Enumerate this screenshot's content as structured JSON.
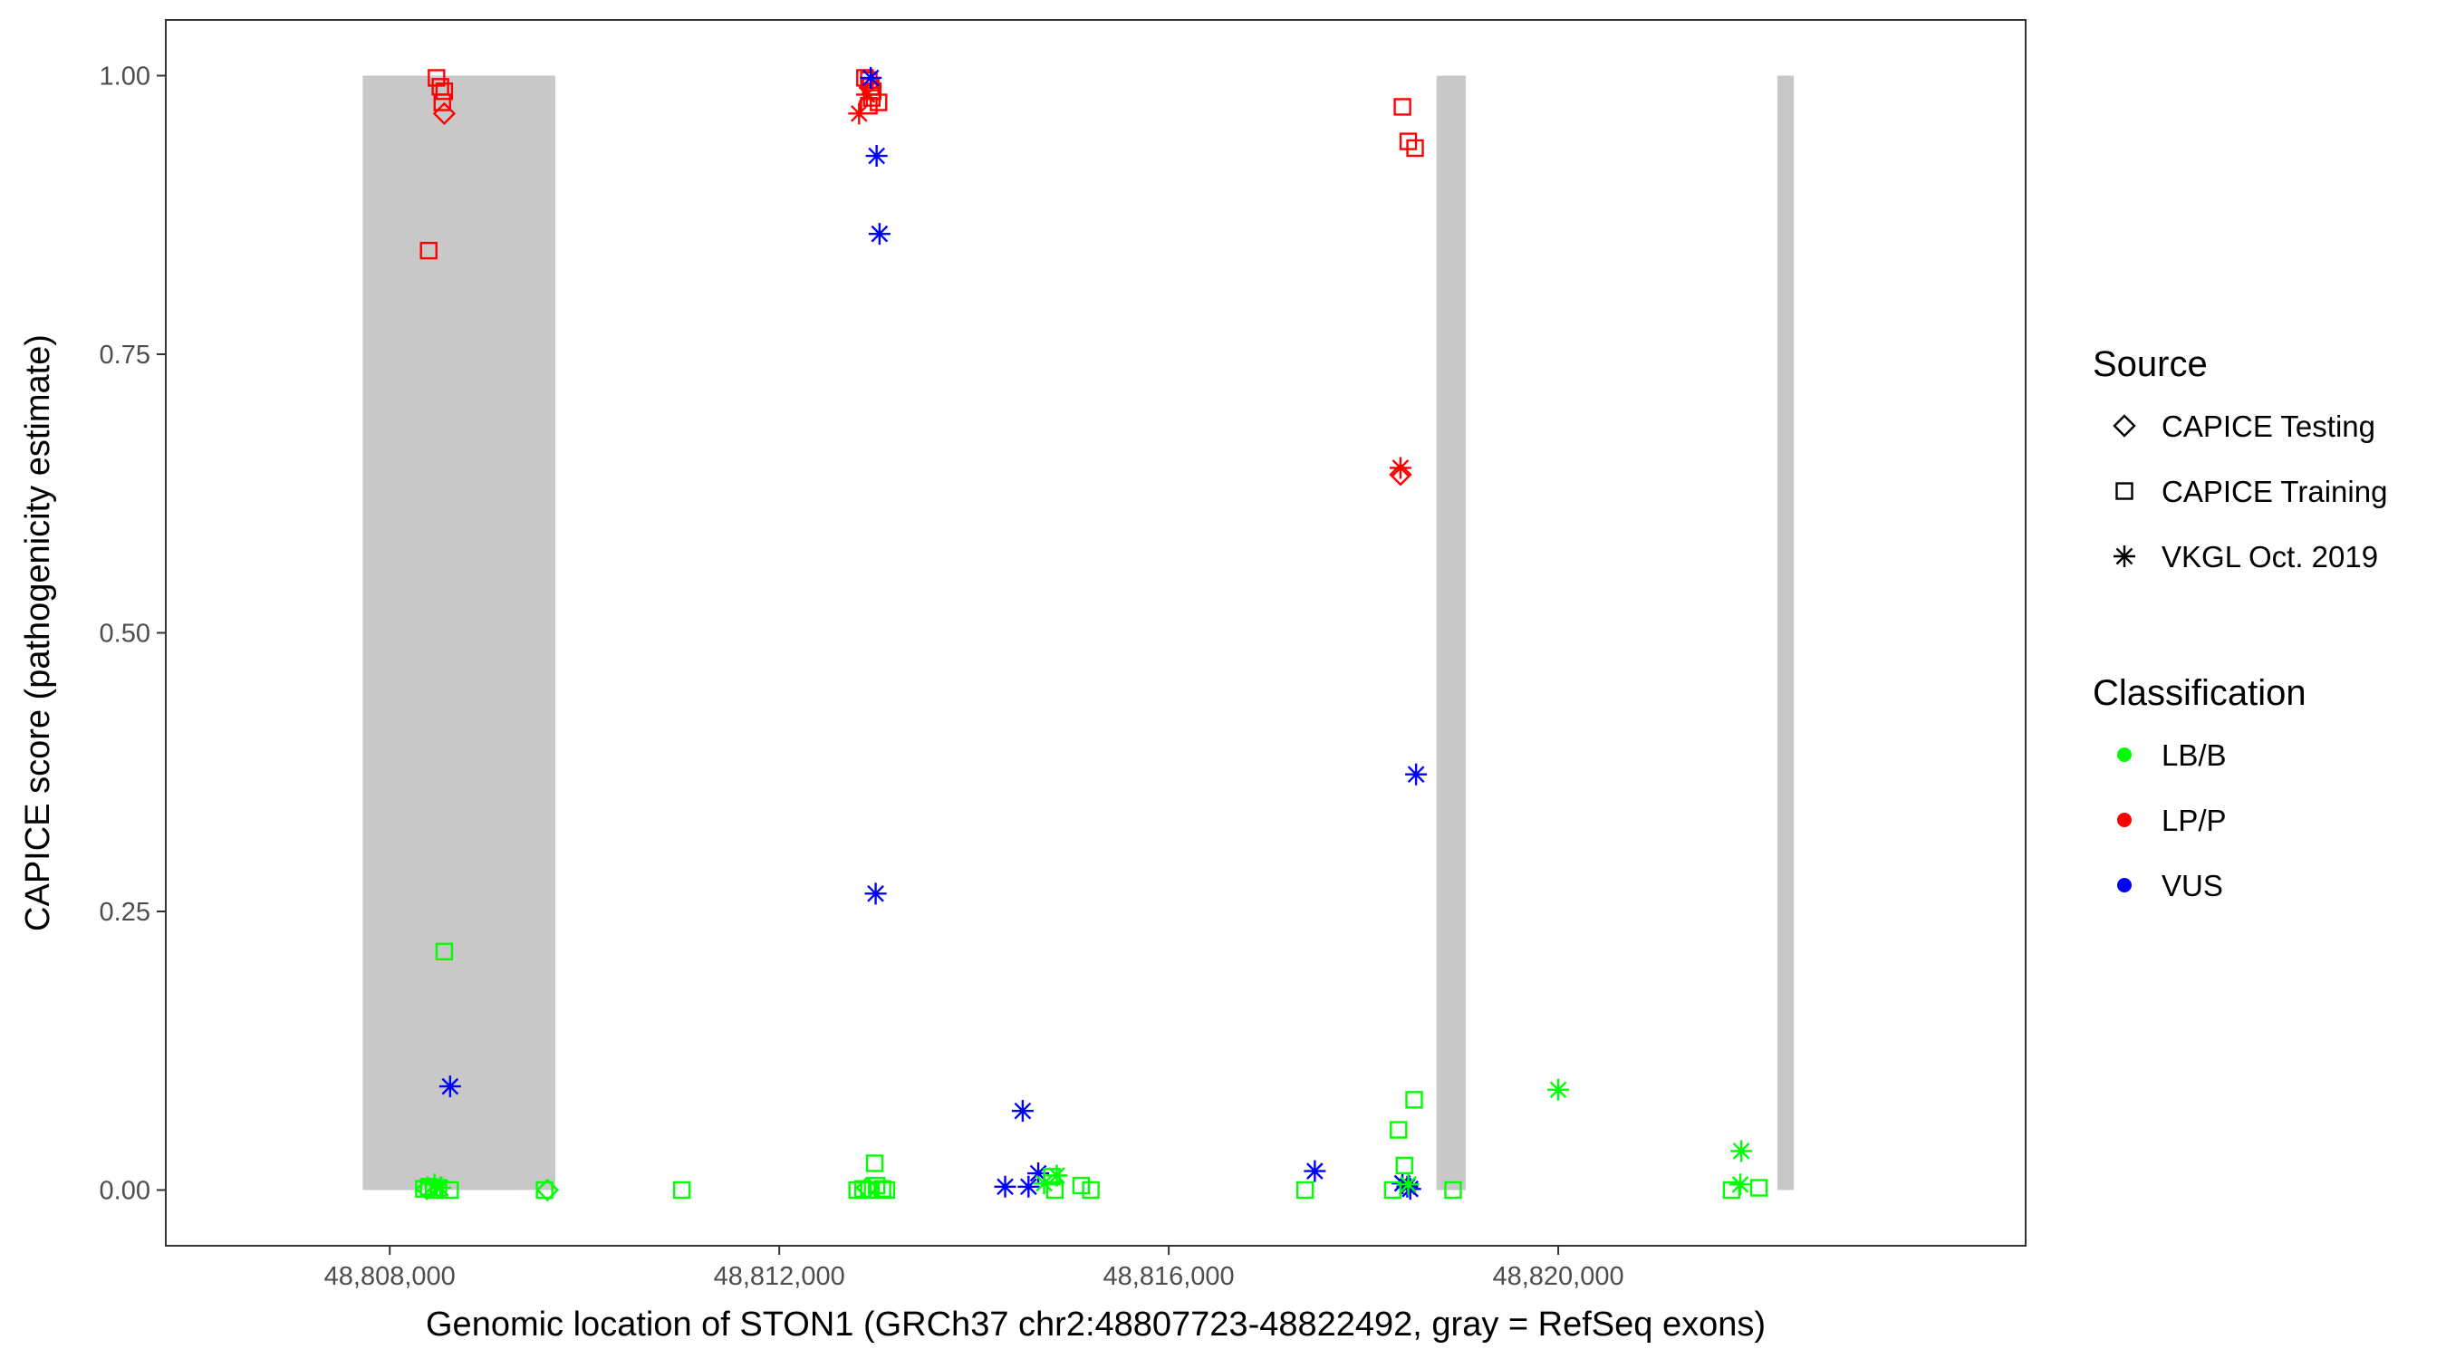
{
  "chart_data": {
    "type": "scatter",
    "title": "",
    "xlabel": "Genomic location of STON1 (GRCh37 chr2:48807723-48822492, gray = RefSeq exons)",
    "ylabel": "CAPICE score (pathogenicity estimate)",
    "xlim": [
      48805700,
      48824800
    ],
    "ylim": [
      -0.05,
      1.05
    ],
    "x_ticks": [
      48808000,
      48812000,
      48816000,
      48820000
    ],
    "x_tick_labels": [
      "48,808,000",
      "48,812,000",
      "48,816,000",
      "48,820,000"
    ],
    "y_ticks": [
      0,
      0.25,
      0.5,
      0.75,
      1
    ],
    "y_tick_labels": [
      "0.00",
      "0.25",
      "0.50",
      "0.75",
      "1.00"
    ],
    "grid": false,
    "exons": [
      {
        "start": 48807723,
        "end": 48809700
      },
      {
        "start": 48818750,
        "end": 48819050
      },
      {
        "start": 48822250,
        "end": 48822420
      }
    ],
    "exon_color": "#c8c8c8",
    "legend_placement": "right",
    "legend": {
      "source_title": "Source",
      "source_items": [
        {
          "label": "CAPICE Testing",
          "shape": "diamond"
        },
        {
          "label": "CAPICE Training",
          "shape": "square"
        },
        {
          "label": "VKGL Oct. 2019",
          "shape": "asterisk"
        }
      ],
      "class_title": "Classification",
      "class_items": [
        {
          "label": "LB/B",
          "color": "#00ff00"
        },
        {
          "label": "LP/P",
          "color": "#ff0000"
        },
        {
          "label": "VUS",
          "color": "#0000ff"
        }
      ]
    },
    "series": [
      {
        "name": "LP/P",
        "color": "#ff0000",
        "points": [
          {
            "x": 48808480,
            "y": 0.998,
            "shape": "square"
          },
          {
            "x": 48808520,
            "y": 0.99,
            "shape": "square"
          },
          {
            "x": 48808560,
            "y": 0.986,
            "shape": "square"
          },
          {
            "x": 48808540,
            "y": 0.976,
            "shape": "square"
          },
          {
            "x": 48808560,
            "y": 0.966,
            "shape": "diamond"
          },
          {
            "x": 48808400,
            "y": 0.843,
            "shape": "square"
          },
          {
            "x": 48812880,
            "y": 0.998,
            "shape": "square"
          },
          {
            "x": 48812920,
            "y": 0.996,
            "shape": "square"
          },
          {
            "x": 48812940,
            "y": 0.99,
            "shape": "square"
          },
          {
            "x": 48812960,
            "y": 0.986,
            "shape": "square"
          },
          {
            "x": 48812950,
            "y": 0.98,
            "shape": "square"
          },
          {
            "x": 48813020,
            "y": 0.976,
            "shape": "square"
          },
          {
            "x": 48812920,
            "y": 0.973,
            "shape": "square"
          },
          {
            "x": 48812820,
            "y": 0.966,
            "shape": "asterisk"
          },
          {
            "x": 48812900,
            "y": 0.983,
            "shape": "asterisk"
          },
          {
            "x": 48818400,
            "y": 0.972,
            "shape": "square"
          },
          {
            "x": 48818460,
            "y": 0.941,
            "shape": "square"
          },
          {
            "x": 48818530,
            "y": 0.935,
            "shape": "square"
          },
          {
            "x": 48818380,
            "y": 0.648,
            "shape": "asterisk"
          },
          {
            "x": 48818380,
            "y": 0.642,
            "shape": "diamond"
          }
        ]
      },
      {
        "name": "VUS",
        "color": "#0000ff",
        "points": [
          {
            "x": 48812940,
            "y": 0.998,
            "shape": "asterisk"
          },
          {
            "x": 48813000,
            "y": 0.928,
            "shape": "asterisk"
          },
          {
            "x": 48813030,
            "y": 0.858,
            "shape": "asterisk"
          },
          {
            "x": 48812990,
            "y": 0.266,
            "shape": "asterisk"
          },
          {
            "x": 48808620,
            "y": 0.093,
            "shape": "asterisk"
          },
          {
            "x": 48814320,
            "y": 0.003,
            "shape": "asterisk"
          },
          {
            "x": 48814500,
            "y": 0.071,
            "shape": "asterisk"
          },
          {
            "x": 48814560,
            "y": 0.003,
            "shape": "asterisk"
          },
          {
            "x": 48814660,
            "y": 0.015,
            "shape": "asterisk"
          },
          {
            "x": 48817500,
            "y": 0.017,
            "shape": "asterisk"
          },
          {
            "x": 48818540,
            "y": 0.373,
            "shape": "asterisk"
          },
          {
            "x": 48818400,
            "y": 0.006,
            "shape": "asterisk"
          },
          {
            "x": 48818450,
            "y": 0.003,
            "shape": "asterisk"
          },
          {
            "x": 48818480,
            "y": 0.001,
            "shape": "asterisk"
          }
        ]
      },
      {
        "name": "LB/B",
        "color": "#00ff00",
        "points": [
          {
            "x": 48808560,
            "y": 0.214,
            "shape": "square"
          },
          {
            "x": 48808350,
            "y": 0.001,
            "shape": "square"
          },
          {
            "x": 48808400,
            "y": 0.003,
            "shape": "square"
          },
          {
            "x": 48808450,
            "y": 0.0,
            "shape": "square"
          },
          {
            "x": 48808500,
            "y": 0.002,
            "shape": "square"
          },
          {
            "x": 48808620,
            "y": 0.0,
            "shape": "square"
          },
          {
            "x": 48808460,
            "y": 0.005,
            "shape": "asterisk"
          },
          {
            "x": 48808520,
            "y": 0.002,
            "shape": "asterisk"
          },
          {
            "x": 48808380,
            "y": 0.001,
            "shape": "diamond"
          },
          {
            "x": 48809590,
            "y": 0.0,
            "shape": "square"
          },
          {
            "x": 48809620,
            "y": 0.0,
            "shape": "diamond"
          },
          {
            "x": 48811000,
            "y": 0.0,
            "shape": "square"
          },
          {
            "x": 48812800,
            "y": 0.0,
            "shape": "square"
          },
          {
            "x": 48812860,
            "y": 0.001,
            "shape": "square"
          },
          {
            "x": 48812920,
            "y": 0.0,
            "shape": "square"
          },
          {
            "x": 48812980,
            "y": 0.024,
            "shape": "square"
          },
          {
            "x": 48813000,
            "y": 0.004,
            "shape": "square"
          },
          {
            "x": 48813060,
            "y": 0.001,
            "shape": "square"
          },
          {
            "x": 48813100,
            "y": 0.0,
            "shape": "square"
          },
          {
            "x": 48812900,
            "y": 0.002,
            "shape": "diamond"
          },
          {
            "x": 48814720,
            "y": 0.006,
            "shape": "asterisk"
          },
          {
            "x": 48814850,
            "y": 0.013,
            "shape": "asterisk"
          },
          {
            "x": 48814800,
            "y": 0.012,
            "shape": "square"
          },
          {
            "x": 48814830,
            "y": 0.0,
            "shape": "square"
          },
          {
            "x": 48815100,
            "y": 0.004,
            "shape": "square"
          },
          {
            "x": 48815200,
            "y": 0.0,
            "shape": "square"
          },
          {
            "x": 48817400,
            "y": 0.0,
            "shape": "square"
          },
          {
            "x": 48818300,
            "y": 0.0,
            "shape": "square"
          },
          {
            "x": 48818360,
            "y": 0.054,
            "shape": "square"
          },
          {
            "x": 48818420,
            "y": 0.022,
            "shape": "square"
          },
          {
            "x": 48818520,
            "y": 0.081,
            "shape": "square"
          },
          {
            "x": 48818460,
            "y": 0.005,
            "shape": "asterisk"
          },
          {
            "x": 48818920,
            "y": 0.0,
            "shape": "square"
          },
          {
            "x": 48820000,
            "y": 0.09,
            "shape": "asterisk"
          },
          {
            "x": 48821780,
            "y": 0.0,
            "shape": "square"
          },
          {
            "x": 48821870,
            "y": 0.005,
            "shape": "asterisk"
          },
          {
            "x": 48821880,
            "y": 0.035,
            "shape": "asterisk"
          },
          {
            "x": 48822060,
            "y": 0.002,
            "shape": "square"
          }
        ]
      }
    ]
  }
}
